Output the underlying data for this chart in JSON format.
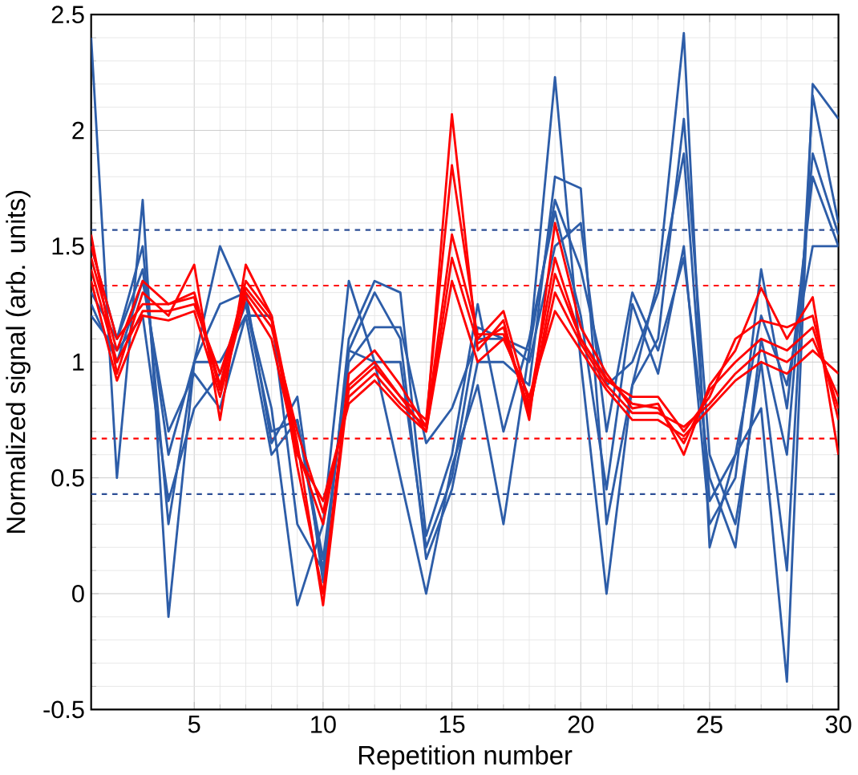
{
  "chart_data": {
    "type": "line",
    "xlabel": "Repetition number",
    "ylabel": "Normalized signal (arb. units)",
    "x": [
      1,
      2,
      3,
      4,
      5,
      6,
      7,
      8,
      9,
      10,
      11,
      12,
      13,
      14,
      15,
      16,
      17,
      18,
      19,
      20,
      21,
      22,
      23,
      24,
      25,
      26,
      27,
      28,
      29,
      30
    ],
    "xlim": [
      1,
      30
    ],
    "xticks": [
      5,
      10,
      15,
      20,
      25,
      30
    ],
    "ylim": [
      -0.5,
      2.5
    ],
    "yticks": [
      -0.5,
      0,
      0.5,
      1,
      1.5,
      2,
      2.5
    ],
    "grid": true,
    "marker": "none",
    "line_style": "solid",
    "series": [
      {
        "color": "#2d5da8",
        "values": [
          2.4,
          0.5,
          1.7,
          -0.1,
          1.0,
          1.5,
          1.25,
          0.8,
          -0.05,
          0.3,
          1.35,
          1.0,
          0.5,
          0.0,
          0.55,
          0.9,
          0.3,
          1.05,
          2.23,
          1.0,
          0.0,
          0.9,
          1.35,
          2.42,
          0.2,
          0.6,
          0.8,
          -0.38,
          2.2,
          2.05
        ]
      },
      {
        "color": "#2d5da8",
        "values": [
          1.5,
          1.1,
          1.5,
          0.3,
          1.0,
          1.0,
          1.2,
          1.2,
          0.3,
          0.1,
          1.05,
          1.3,
          1.1,
          0.15,
          0.45,
          1.0,
          1.0,
          0.9,
          1.8,
          1.75,
          0.3,
          0.9,
          1.1,
          2.05,
          0.6,
          0.3,
          1.0,
          0.1,
          2.15,
          1.6
        ]
      },
      {
        "color": "#2d5da8",
        "values": [
          1.3,
          1.1,
          1.4,
          0.6,
          1.0,
          1.25,
          1.3,
          0.65,
          0.85,
          0.05,
          1.1,
          1.35,
          1.3,
          0.25,
          0.6,
          1.25,
          0.7,
          1.1,
          1.65,
          1.2,
          0.45,
          1.25,
          0.95,
          1.5,
          0.3,
          0.5,
          1.4,
          0.8,
          1.8,
          1.5
        ]
      },
      {
        "color": "#2d5da8",
        "values": [
          1.2,
          1.05,
          1.2,
          0.4,
          0.8,
          0.95,
          1.25,
          0.7,
          0.75,
          0.1,
          1.05,
          1.0,
          1.0,
          0.2,
          0.5,
          1.15,
          1.1,
          1.0,
          1.5,
          1.6,
          0.7,
          1.3,
          1.05,
          1.45,
          0.5,
          0.2,
          1.1,
          0.6,
          1.9,
          1.55
        ]
      },
      {
        "color": "#2d5da8",
        "values": [
          1.25,
          1.0,
          1.35,
          0.7,
          0.95,
          0.8,
          1.2,
          0.6,
          0.75,
          0.15,
          1.0,
          1.15,
          1.15,
          0.65,
          0.8,
          1.1,
          1.1,
          1.05,
          1.7,
          1.4,
          0.9,
          1.0,
          1.3,
          1.9,
          0.4,
          0.6,
          1.2,
          0.9,
          1.5,
          1.5
        ]
      },
      {
        "color": "#ff0000",
        "values": [
          1.55,
          0.95,
          1.3,
          1.2,
          1.42,
          0.75,
          1.42,
          1.2,
          0.55,
          0.0,
          0.95,
          1.05,
          0.9,
          0.72,
          2.07,
          1.05,
          1.18,
          0.75,
          1.6,
          1.15,
          0.95,
          0.8,
          0.82,
          0.6,
          0.9,
          1.05,
          1.32,
          1.1,
          1.28,
          0.6
        ]
      },
      {
        "color": "#ff0000",
        "values": [
          1.45,
          1.05,
          1.35,
          1.25,
          1.3,
          0.9,
          1.35,
          1.2,
          0.65,
          -0.05,
          0.9,
          1.0,
          0.85,
          0.75,
          1.85,
          1.1,
          1.22,
          0.82,
          1.45,
          1.1,
          0.92,
          0.85,
          0.85,
          0.7,
          0.85,
          1.1,
          1.18,
          1.15,
          1.2,
          0.75
        ]
      },
      {
        "color": "#ff0000",
        "values": [
          1.4,
          1.0,
          1.22,
          1.22,
          1.25,
          0.95,
          1.3,
          1.15,
          0.7,
          0.35,
          0.85,
          0.95,
          0.82,
          0.72,
          1.55,
          1.12,
          1.12,
          0.8,
          1.3,
          1.08,
          0.9,
          0.78,
          0.78,
          0.72,
          0.82,
          0.95,
          1.05,
          1.0,
          1.1,
          0.85
        ]
      },
      {
        "color": "#ff0000",
        "values": [
          1.35,
          0.92,
          1.2,
          1.18,
          1.22,
          0.85,
          1.28,
          1.1,
          0.6,
          0.4,
          0.82,
          0.92,
          0.8,
          0.7,
          1.35,
          1.0,
          1.1,
          0.85,
          1.22,
          1.05,
          0.88,
          0.75,
          0.75,
          0.68,
          0.8,
          0.92,
          1.0,
          0.95,
          1.05,
          0.95
        ]
      },
      {
        "color": "#ff0000",
        "values": [
          1.5,
          1.1,
          1.25,
          1.25,
          1.28,
          0.88,
          1.32,
          1.18,
          0.62,
          0.3,
          0.88,
          0.98,
          0.85,
          0.7,
          1.45,
          1.08,
          1.15,
          0.78,
          1.38,
          1.1,
          0.93,
          0.82,
          0.8,
          0.65,
          0.88,
          1.0,
          1.1,
          1.05,
          1.15,
          0.8
        ]
      }
    ],
    "ref_lines": [
      {
        "axis": "y",
        "value": 1.57,
        "color": "#2d4f96",
        "line_style": "dashed"
      },
      {
        "axis": "y",
        "value": 0.43,
        "color": "#2d4f96",
        "line_style": "dashed"
      },
      {
        "axis": "y",
        "value": 1.33,
        "color": "#ff0000",
        "line_style": "dashed"
      },
      {
        "axis": "y",
        "value": 0.67,
        "color": "#ff0000",
        "line_style": "dashed"
      }
    ]
  }
}
